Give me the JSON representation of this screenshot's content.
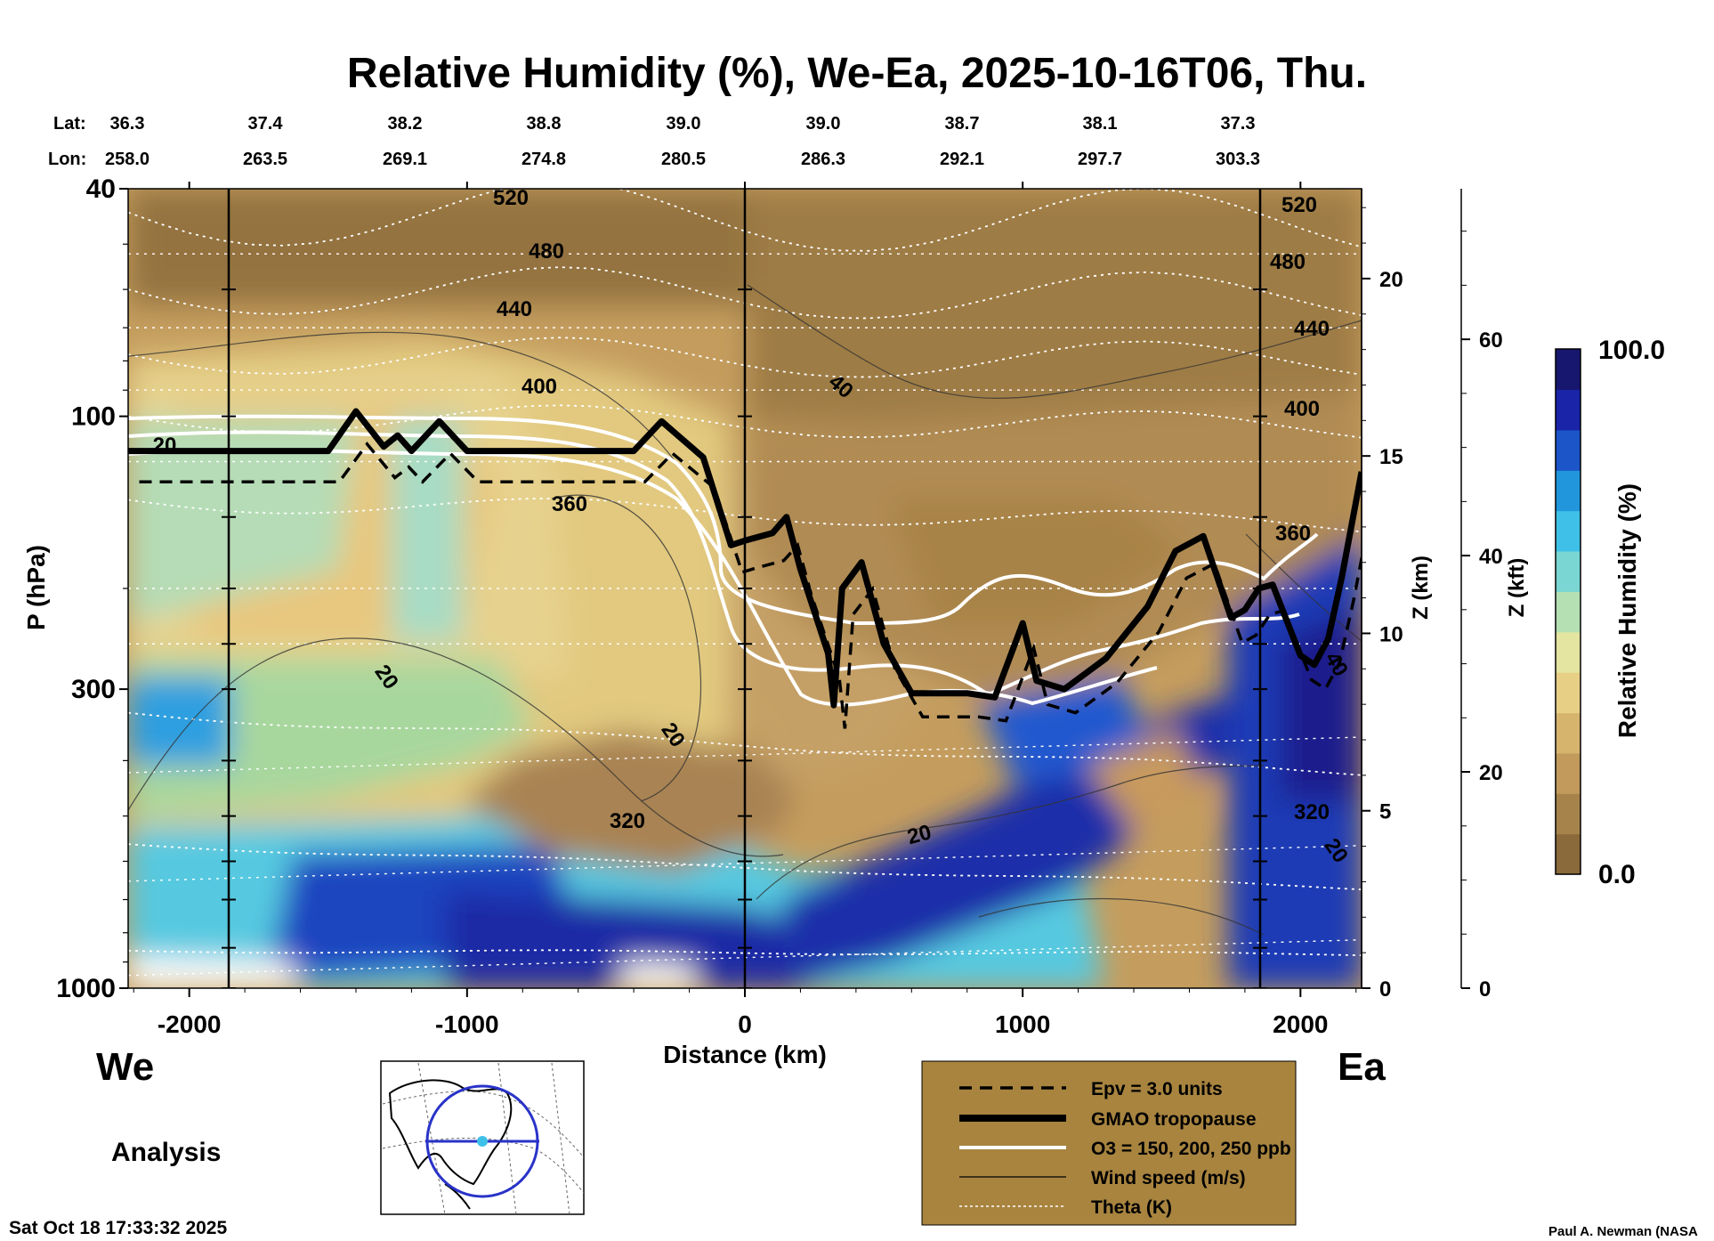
{
  "title": "Relative Humidity (%), We-Ea, 2025-10-16T06, Thu.",
  "latlon": {
    "lat_label": "Lat:",
    "lon_label": "Lon:",
    "lat": [
      "36.3",
      "37.4",
      "38.2",
      "38.8",
      "39.0",
      "39.0",
      "38.7",
      "38.1",
      "37.3"
    ],
    "lon": [
      "258.0",
      "263.5",
      "269.1",
      "274.8",
      "280.5",
      "286.3",
      "292.1",
      "297.7",
      "303.3"
    ]
  },
  "axes": {
    "x_label": "Distance (km)",
    "x_ticks": [
      "-2000",
      "-1000",
      "0",
      "1000",
      "2000"
    ],
    "y_label": "P (hPa)",
    "y_ticks": [
      "40",
      "100",
      "300",
      "1000"
    ],
    "z_km_label": "Z (km)",
    "z_km_ticks": [
      "20",
      "15",
      "10",
      "5",
      "0"
    ],
    "z_kft_label": "Z (kft)",
    "z_kft_ticks": [
      "60",
      "40",
      "20",
      "0"
    ],
    "west": "We",
    "east": "Ea"
  },
  "colorbar": {
    "label": "Relative Humidity (%)",
    "max": "100.0",
    "min": "0.0",
    "colors": [
      "#8a6a3a",
      "#a7834c",
      "#c19a5c",
      "#d7b46e",
      "#e7cf86",
      "#e4e5a0",
      "#b4e0b4",
      "#79d6d2",
      "#3ec0e8",
      "#2196dc",
      "#1b55c8",
      "#1a24a8",
      "#17176f"
    ]
  },
  "theta_labels": [
    "520",
    "480",
    "440",
    "400",
    "360",
    "320",
    "520",
    "480",
    "440",
    "400",
    "360",
    "320"
  ],
  "wind_labels": [
    "20",
    "20",
    "40",
    "20",
    "20",
    "40",
    "20"
  ],
  "legend": {
    "items": [
      {
        "label": "Epv = 3.0 units"
      },
      {
        "label": "GMAO tropopause"
      },
      {
        "label": "O3 = 150, 200, 250 ppb"
      },
      {
        "label": "Wind speed (m/s)"
      },
      {
        "label": "Theta (K)"
      }
    ],
    "bg": "#a8843f"
  },
  "analysis_label": "Analysis",
  "timestamp": "Sat Oct 18 17:33:32 2025",
  "credit": "Paul A. Newman (NASA",
  "chart_data": {
    "type": "heatmap",
    "title": "Relative Humidity (%), We-Ea, 2025-10-16T06, Thu.",
    "xlabel": "Distance (km)",
    "ylabel": "P (hPa)",
    "xlim": [
      -2220,
      2220
    ],
    "ylim": [
      1000,
      40
    ],
    "y_scale": "log",
    "color_range": [
      0,
      100
    ],
    "tropopause": {
      "x": [
        -2220,
        -1500,
        -1400,
        -1300,
        -1250,
        -1200,
        -1100,
        -1000,
        -400,
        -300,
        -150,
        -50,
        0,
        100,
        150,
        200,
        300,
        320,
        350,
        420,
        500,
        600,
        800,
        900,
        1000,
        1050,
        1150,
        1300,
        1450,
        1550,
        1650,
        1750,
        1800,
        1850,
        1900,
        2000,
        2050,
        2100,
        2150,
        2220
      ],
      "y": [
        115,
        115,
        98,
        113,
        108,
        115,
        102,
        115,
        115,
        102,
        118,
        168,
        165,
        160,
        150,
        185,
        260,
        320,
        200,
        180,
        250,
        305,
        305,
        310,
        230,
        290,
        300,
        265,
        215,
        172,
        162,
        225,
        218,
        200,
        197,
        262,
        272,
        245,
        190,
        125
      ]
    },
    "theta_levels_K": [
      520,
      480,
      440,
      400,
      360,
      320
    ],
    "wind_contours_ms": [
      20,
      40
    ]
  }
}
